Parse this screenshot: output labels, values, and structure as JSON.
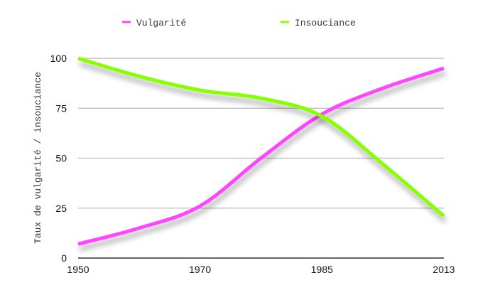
{
  "chart_data": {
    "type": "line",
    "title": "",
    "xlabel": "",
    "ylabel": "Taux de vulgarité / insouciance",
    "x_tick_labels": [
      "1950",
      "1970",
      "1985",
      "2013"
    ],
    "x_tick_positions": [
      0,
      1,
      2,
      3
    ],
    "x": [
      0,
      0.5,
      1,
      1.5,
      2,
      2.5,
      3
    ],
    "y_ticks": [
      0,
      25,
      50,
      75,
      100
    ],
    "ylim": [
      0,
      100
    ],
    "xlim": [
      0,
      3
    ],
    "grid": "horizontal",
    "legend_placement": "top-center",
    "series": [
      {
        "name": "Vulgarité",
        "color": "#ff44ff",
        "values": [
          7,
          15,
          26,
          50,
          72,
          85,
          95
        ]
      },
      {
        "name": "Insouciance",
        "color": "#88ff00",
        "values": [
          100,
          91,
          84,
          80,
          71,
          47,
          21
        ]
      }
    ]
  }
}
